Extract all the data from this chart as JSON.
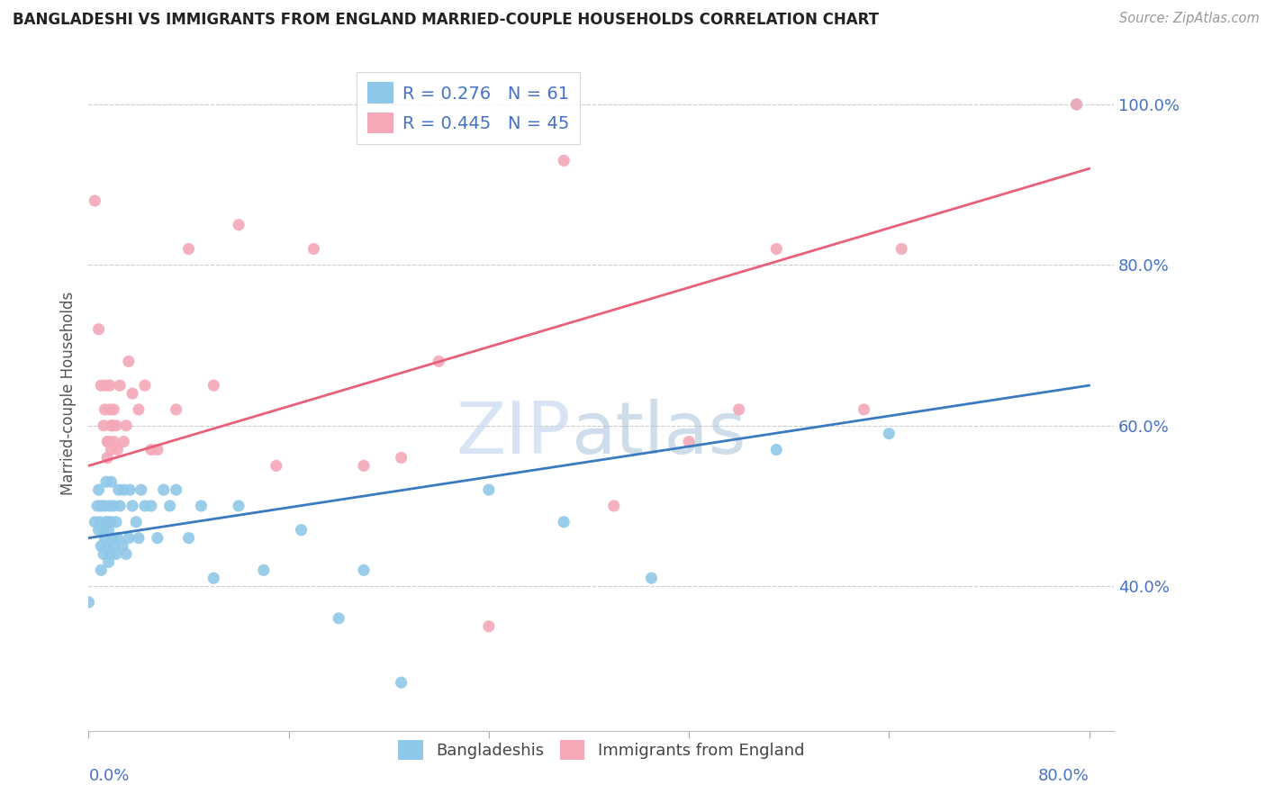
{
  "title": "BANGLADESHI VS IMMIGRANTS FROM ENGLAND MARRIED-COUPLE HOUSEHOLDS CORRELATION CHART",
  "source": "Source: ZipAtlas.com",
  "ylabel": "Married-couple Households",
  "background_color": "#ffffff",
  "grid_color": "#cccccc",
  "blue_color": "#8fc8e8",
  "pink_color": "#f4a8b8",
  "blue_line_color": "#3a7abf",
  "pink_line_color": "#e8607a",
  "legend_blue_R": "0.276",
  "legend_blue_N": "61",
  "legend_pink_R": "0.445",
  "legend_pink_N": "45",
  "watermark_zip": "ZIP",
  "watermark_atlas": "atlas",
  "blue_scatter_x": [
    0.0,
    0.005,
    0.007,
    0.008,
    0.008,
    0.009,
    0.01,
    0.01,
    0.01,
    0.012,
    0.012,
    0.013,
    0.013,
    0.014,
    0.014,
    0.015,
    0.015,
    0.016,
    0.016,
    0.017,
    0.017,
    0.018,
    0.018,
    0.019,
    0.02,
    0.02,
    0.022,
    0.022,
    0.023,
    0.024,
    0.025,
    0.027,
    0.028,
    0.03,
    0.032,
    0.033,
    0.035,
    0.038,
    0.04,
    0.042,
    0.045,
    0.05,
    0.055,
    0.06,
    0.065,
    0.07,
    0.08,
    0.09,
    0.1,
    0.12,
    0.14,
    0.17,
    0.2,
    0.22,
    0.25,
    0.32,
    0.38,
    0.45,
    0.55,
    0.64,
    0.79
  ],
  "blue_scatter_y": [
    0.38,
    0.48,
    0.5,
    0.47,
    0.52,
    0.48,
    0.42,
    0.45,
    0.5,
    0.44,
    0.47,
    0.46,
    0.5,
    0.48,
    0.53,
    0.45,
    0.48,
    0.43,
    0.47,
    0.5,
    0.44,
    0.48,
    0.53,
    0.46,
    0.45,
    0.5,
    0.48,
    0.44,
    0.46,
    0.52,
    0.5,
    0.45,
    0.52,
    0.44,
    0.46,
    0.52,
    0.5,
    0.48,
    0.46,
    0.52,
    0.5,
    0.5,
    0.46,
    0.52,
    0.5,
    0.52,
    0.46,
    0.5,
    0.41,
    0.5,
    0.42,
    0.47,
    0.36,
    0.42,
    0.28,
    0.52,
    0.48,
    0.41,
    0.57,
    0.59,
    1.0
  ],
  "pink_scatter_x": [
    0.005,
    0.008,
    0.01,
    0.012,
    0.013,
    0.014,
    0.015,
    0.015,
    0.016,
    0.017,
    0.017,
    0.018,
    0.018,
    0.019,
    0.02,
    0.02,
    0.022,
    0.023,
    0.025,
    0.028,
    0.03,
    0.032,
    0.035,
    0.04,
    0.045,
    0.05,
    0.055,
    0.07,
    0.08,
    0.1,
    0.12,
    0.15,
    0.18,
    0.22,
    0.25,
    0.28,
    0.32,
    0.38,
    0.42,
    0.48,
    0.52,
    0.55,
    0.62,
    0.65,
    0.79
  ],
  "pink_scatter_y": [
    0.88,
    0.72,
    0.65,
    0.6,
    0.62,
    0.65,
    0.56,
    0.58,
    0.58,
    0.62,
    0.65,
    0.57,
    0.6,
    0.6,
    0.58,
    0.62,
    0.6,
    0.57,
    0.65,
    0.58,
    0.6,
    0.68,
    0.64,
    0.62,
    0.65,
    0.57,
    0.57,
    0.62,
    0.82,
    0.65,
    0.85,
    0.55,
    0.82,
    0.55,
    0.56,
    0.68,
    0.35,
    0.93,
    0.5,
    0.58,
    0.62,
    0.82,
    0.62,
    0.82,
    1.0
  ],
  "xlim": [
    0.0,
    0.82
  ],
  "ylim": [
    0.22,
    1.06
  ],
  "ytick_vals": [
    1.0,
    0.8,
    0.6,
    0.4
  ],
  "blue_line_x0": 0.0,
  "blue_line_y0": 0.46,
  "blue_line_x1": 0.8,
  "blue_line_y1": 0.65,
  "pink_line_x0": 0.0,
  "pink_line_y0": 0.55,
  "pink_line_x1": 0.8,
  "pink_line_y1": 0.92
}
